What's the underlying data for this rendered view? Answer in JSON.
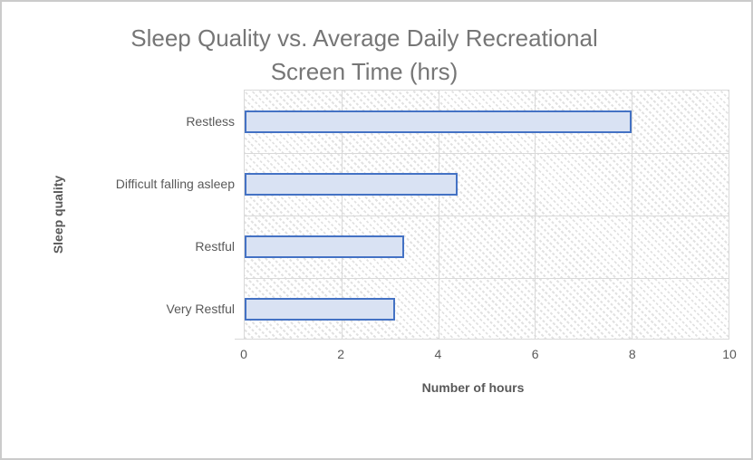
{
  "window": {
    "background": "#FFFFFF",
    "frame_border_color": "#CBCBCB"
  },
  "chart_data": {
    "type": "bar",
    "orientation": "horizontal",
    "title": "Sleep Quality vs. Average Daily Recreational Screen Time (hrs)",
    "title_lines": [
      "Sleep Quality vs. Average Daily Recreational",
      "Screen Time (hrs)"
    ],
    "categories": [
      "Restless",
      "Difficult falling asleep",
      "Restful",
      "Very Restful"
    ],
    "values": [
      8,
      4.4,
      3.3,
      3.1
    ],
    "xlabel": "Number of hours",
    "ylabel": "Sleep quality",
    "xlim": [
      0,
      10
    ],
    "x_ticks": [
      0,
      2,
      4,
      6,
      8,
      10
    ],
    "grid": true,
    "legend": "none",
    "colors": {
      "bar_fill": "#D9E2F3",
      "bar_border": "#4472C4",
      "gridline": "#D9D9D9",
      "hatch": "#E2E2E2",
      "title_text": "#767676",
      "axis_text": "#595959"
    }
  }
}
